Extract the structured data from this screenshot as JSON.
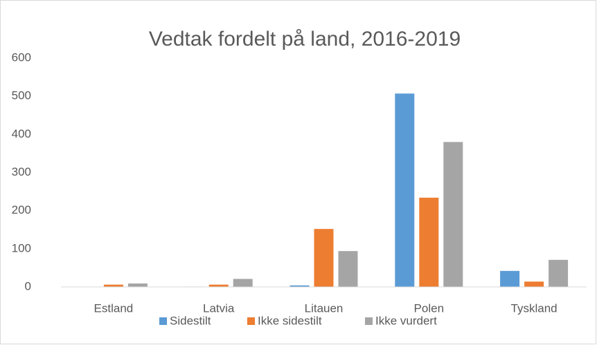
{
  "chart_data": {
    "type": "bar",
    "title": "Vedtak fordelt på land, 2016-2019",
    "categories": [
      "Estland",
      "Latvia",
      "Litauen",
      "Polen",
      "Tyskland"
    ],
    "series": [
      {
        "name": "Sidestilt",
        "color": "#5b9bd5",
        "values": [
          0,
          1,
          4,
          507,
          42
        ]
      },
      {
        "name": "Ikke sidestilt",
        "color": "#ed7d31",
        "values": [
          6,
          6,
          152,
          234,
          14
        ]
      },
      {
        "name": "Ikke vurdert",
        "color": "#a5a5a5",
        "values": [
          9,
          21,
          94,
          380,
          71
        ]
      }
    ],
    "ylim": [
      0,
      600
    ],
    "yticks": [
      0,
      100,
      200,
      300,
      400,
      500,
      600
    ],
    "grid": false,
    "legend": "bottom"
  }
}
